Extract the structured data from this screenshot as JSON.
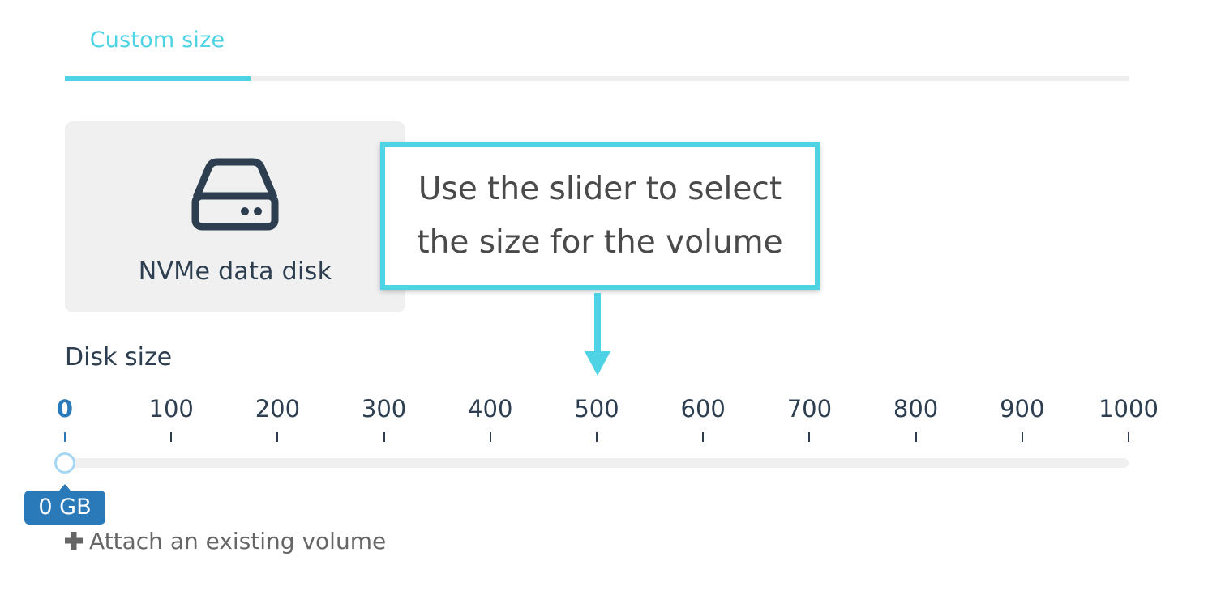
{
  "tabs": {
    "active_label": "Custom size"
  },
  "card": {
    "icon": "hard-drive-icon",
    "label": "NVMe data disk"
  },
  "callout": {
    "text": "Use the slider to select the size for the volume"
  },
  "disk_size": {
    "label": "Disk size",
    "ticks": [
      "0",
      "100",
      "200",
      "300",
      "400",
      "500",
      "600",
      "700",
      "800",
      "900",
      "1000"
    ],
    "min": 0,
    "max": 1000,
    "value": 0,
    "value_label": "0 GB"
  },
  "attach": {
    "label": "Attach an existing volume",
    "icon": "plus-icon"
  },
  "colors": {
    "accent": "#4dd3e3",
    "primary": "#2a7ab9",
    "text": "#2c3e50"
  }
}
